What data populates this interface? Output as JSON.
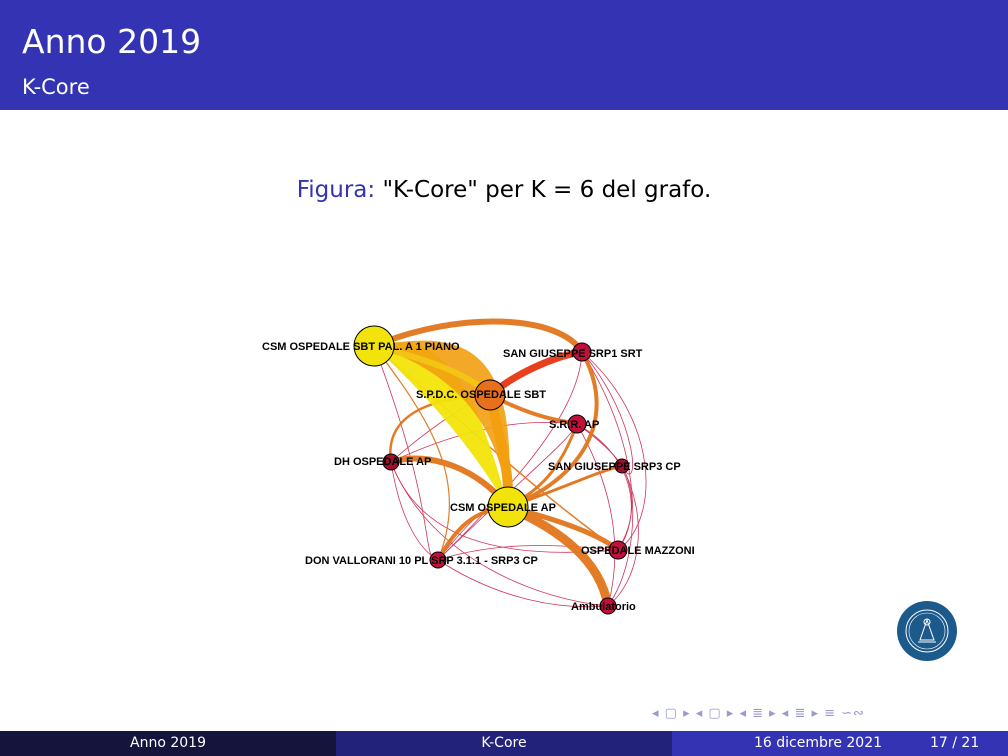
{
  "header": {
    "title": "Anno 2019",
    "subtitle": "K-Core"
  },
  "caption": {
    "label": "Figura:",
    "text": "\"K-Core\" per K = 6 del grafo."
  },
  "graph": {
    "nodes": [
      {
        "id": "csm_sbt",
        "label": "CSM OSPEDALE SBT PAL. A 1 PIANO",
        "color": "#f2e40a"
      },
      {
        "id": "sg1",
        "label": "SAN GIUSEPPE SRP1 SRT",
        "color": "#c0103c"
      },
      {
        "id": "spdc",
        "label": "S.P.D.C. OSPEDALE SBT",
        "color": "#e8701c"
      },
      {
        "id": "srr",
        "label": "S.R.R. AP",
        "color": "#c0103c"
      },
      {
        "id": "dh",
        "label": "DH OSPEDALE AP",
        "color": "#a0102c"
      },
      {
        "id": "sg3",
        "label": "SAN GIUSEPPE SRP3 CP",
        "color": "#a0102c"
      },
      {
        "id": "csm_ap",
        "label": "CSM OSPEDALE AP",
        "color": "#f2e40a"
      },
      {
        "id": "mazzoni",
        "label": "OSPEDALE MAZZONI",
        "color": "#c0103c"
      },
      {
        "id": "dv",
        "label": "DON VALLORANI 10 PL SRP 3.1.1 - SRP3 CP",
        "color": "#c0103c"
      },
      {
        "id": "amb",
        "label": "Ambulatorio",
        "color": "#c0103c"
      }
    ]
  },
  "footer": {
    "left": "Anno 2019",
    "center": "K-Core",
    "date": "16 dicembre 2021",
    "page": "17 / 21"
  },
  "nav_symbols": "◂ ▢ ▸ ◂ ▢ ▸ ◂ ≣ ▸ ◂ ≣ ▸ ≡ ∽∾"
}
